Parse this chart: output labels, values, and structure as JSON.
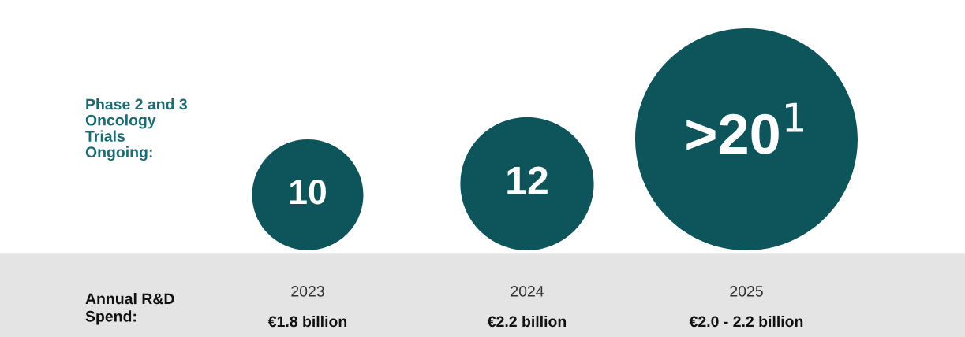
{
  "chart_data": {
    "type": "other",
    "categories": [
      "2023",
      "2024",
      "2025"
    ],
    "values": [
      10,
      12,
      20
    ],
    "color": "#0d545b",
    "value_labels": [
      "10",
      "12",
      ">20$^{1}$"
    ],
    "annotations": [
      "Phase 2 and 3\nOncology\nTrials\nOngoing:",
      "Annual R&D\nSpend:",
      "€1.8 billion",
      "€2.2 billion",
      "€2.0 - 2.2 billion"
    ]
  }
}
